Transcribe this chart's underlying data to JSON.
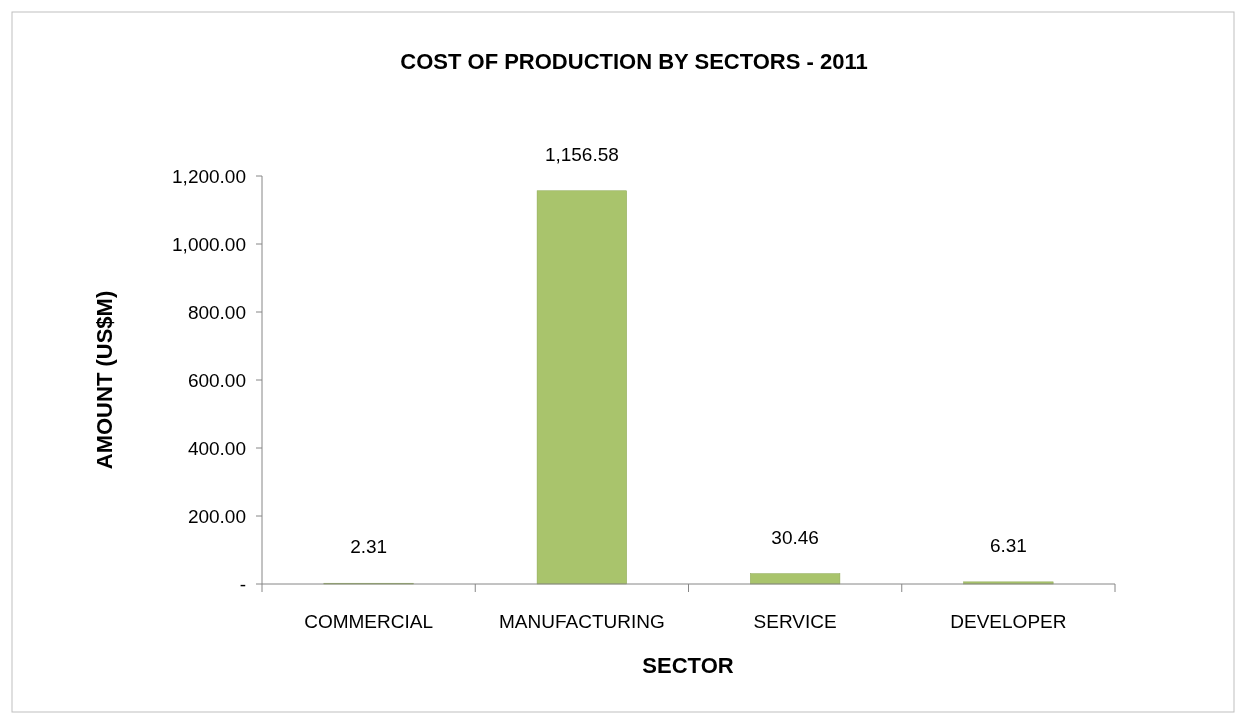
{
  "chart_data": {
    "type": "bar",
    "title": "COST OF PRODUCTION BY SECTORS - 2011",
    "xlabel": "SECTOR",
    "ylabel": "AMOUNT (US$M)",
    "categories": [
      "COMMERCIAL",
      "MANUFACTURING",
      "SERVICE",
      "DEVELOPER"
    ],
    "values": [
      2.31,
      1156.58,
      30.46,
      6.31
    ],
    "value_labels": [
      "2.31",
      "1,156.58",
      "30.46",
      "6.31"
    ],
    "color": "#a9c46c",
    "ylim": [
      0,
      1200
    ],
    "yticks": [
      {
        "value": 0,
        "label": "-"
      },
      {
        "value": 200,
        "label": "200.00"
      },
      {
        "value": 400,
        "label": "400.00"
      },
      {
        "value": 600,
        "label": "600.00"
      },
      {
        "value": 800,
        "label": "800.00"
      },
      {
        "value": 1000,
        "label": "1,000.00"
      },
      {
        "value": 1200,
        "label": "1,200.00"
      }
    ],
    "grid": false
  }
}
